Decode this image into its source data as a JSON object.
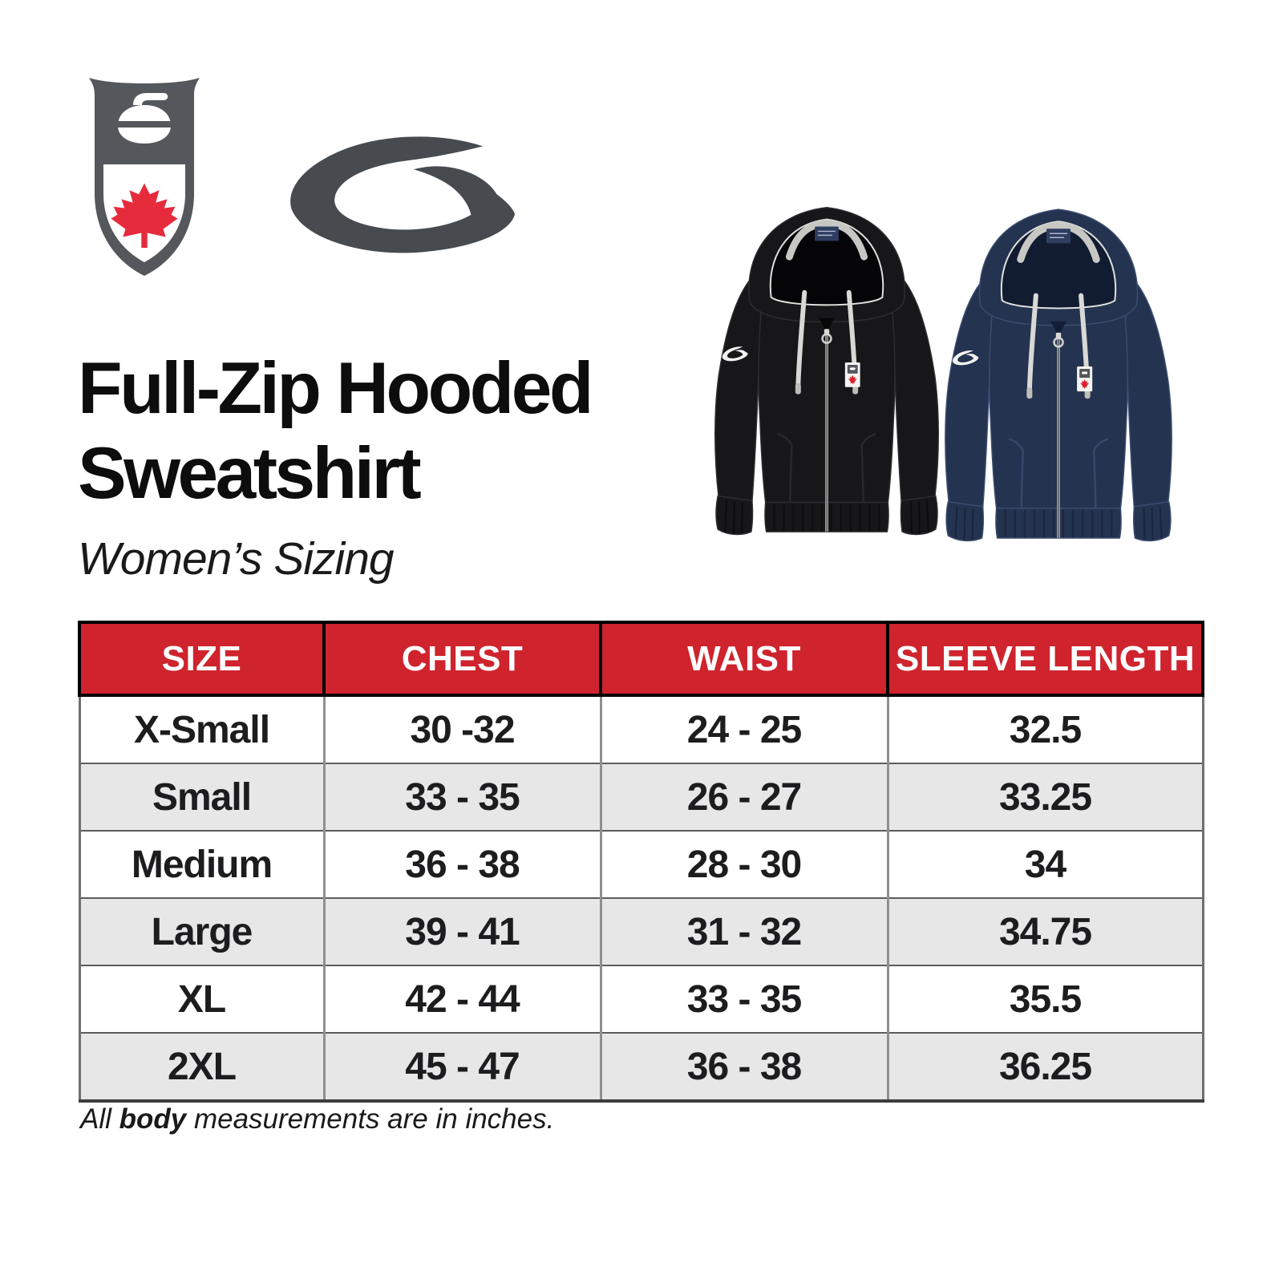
{
  "document": {
    "type": "product-size-chart",
    "background": "#ffffff"
  },
  "branding": {
    "curling_canada_logo": {
      "description": "Curling Canada shield crest: curling stone over red maple leaf",
      "shield_color": "#54575b",
      "leaf_color": "#e62b3d",
      "stone_color": "#ffffff"
    },
    "goldline_logo": {
      "description": "Goldline G swoosh",
      "color": "#474b50"
    }
  },
  "products": [
    {
      "label": "black full-zip hooded sweatshirt",
      "body_color": "#17171a",
      "shade_color": "#050507",
      "edge_color": "#2d2d31"
    },
    {
      "label": "navy full-zip hooded sweatshirt",
      "body_color": "#24334f",
      "shade_color": "#111c31",
      "edge_color": "#3a4c70"
    }
  ],
  "title": {
    "line1": "Full-Zip Hooded",
    "line2": "Sweatshirt"
  },
  "subtitle": "Women’s Sizing",
  "table": {
    "header_bg": "#cf232d",
    "header_text_color": "#ffffff",
    "alt_row_bg": "#e7e7e8",
    "columns": [
      "SIZE",
      "CHEST",
      "WAIST",
      "SLEEVE LENGTH"
    ],
    "rows": [
      [
        "X-Small",
        "30 -32",
        "24 - 25",
        "32.5"
      ],
      [
        "Small",
        "33 - 35",
        "26 - 27",
        "33.25"
      ],
      [
        "Medium",
        "36 - 38",
        "28 - 30",
        "34"
      ],
      [
        "Large",
        "39 - 41",
        "31 - 32",
        "34.75"
      ],
      [
        "XL",
        "42 - 44",
        "33 - 35",
        "35.5"
      ],
      [
        "2XL",
        "45 - 47",
        "36 - 38",
        "36.25"
      ]
    ]
  },
  "footnote": {
    "prefix": "All ",
    "bold": "body",
    "suffix": " measurements are in inches."
  }
}
